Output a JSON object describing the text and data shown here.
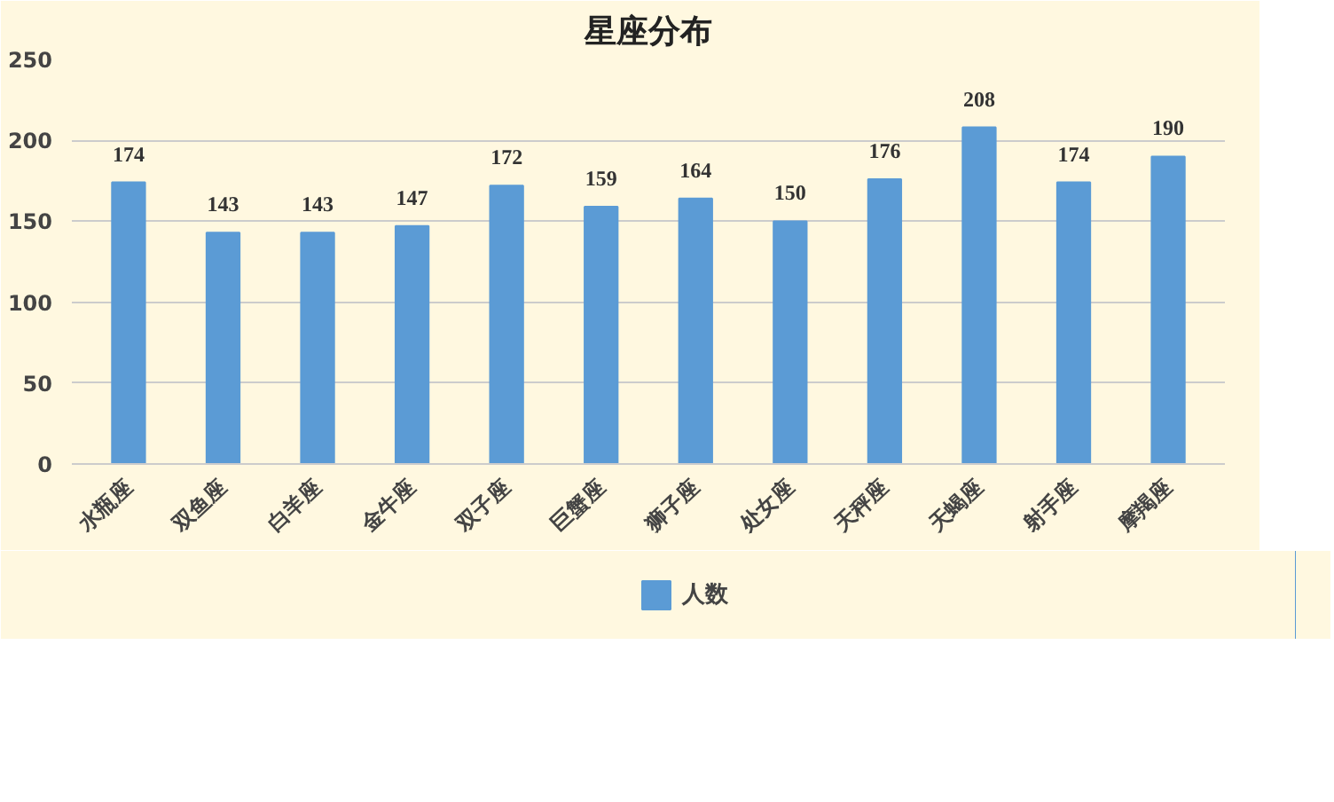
{
  "chart_data": {
    "type": "bar",
    "title": "星座分布",
    "categories": [
      "水瓶座",
      "双鱼座",
      "白羊座",
      "金牛座",
      "双子座",
      "巨蟹座",
      "狮子座",
      "处女座",
      "天秤座",
      "天蝎座",
      "射手座",
      "摩羯座"
    ],
    "series": [
      {
        "name": "人数",
        "color": "#5b9bd5",
        "values": [
          174,
          143,
          143,
          147,
          172,
          159,
          164,
          150,
          176,
          208,
          174,
          190
        ]
      }
    ],
    "ylim": [
      0,
      250
    ],
    "yticks": [
      0,
      50,
      100,
      150,
      200,
      250
    ],
    "grid": "y",
    "legend": "bottom",
    "data_labels": true
  }
}
